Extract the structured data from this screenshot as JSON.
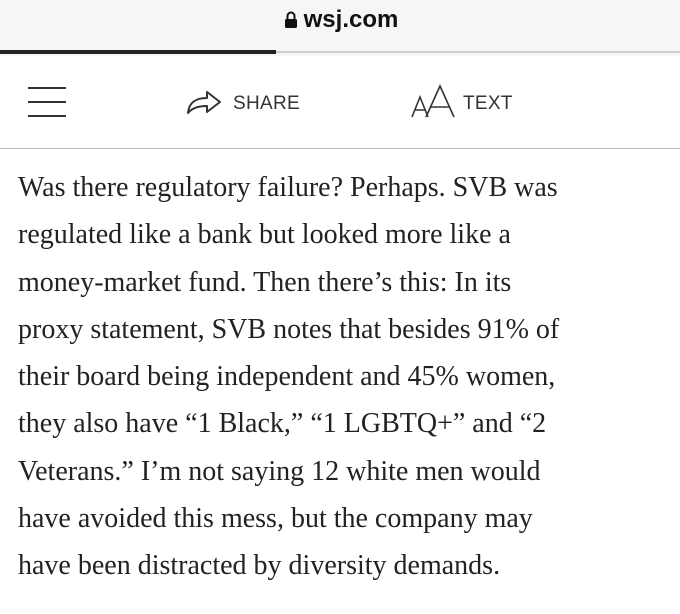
{
  "browser": {
    "url": "wsj.com"
  },
  "toolbar": {
    "share": "SHARE",
    "text": "TEXT"
  },
  "article": {
    "lines": [
      "Was there regulatory failure? Perhaps. SVB was",
      "regulated like a bank but looked more like a",
      "money-market fund. Then there’s this: In its",
      "proxy statement, SVB notes that besides 91% of",
      "their board being independent and 45% women,",
      "they also have “1 Black,” “1 LGBTQ+” and “2",
      "Veterans.” I’m not saying 12 white men would",
      "have avoided this mess, but the company may",
      "have been distracted by diversity demands."
    ]
  }
}
